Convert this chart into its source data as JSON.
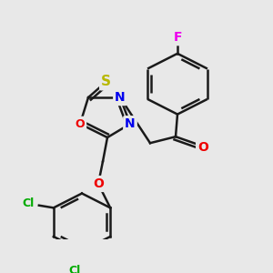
{
  "background_color": "#e8e8e8",
  "bond_color": "#1a1a1a",
  "atom_colors": {
    "S": "#b8b800",
    "N": "#0000ee",
    "O": "#ee0000",
    "F": "#ee00ee",
    "Cl": "#00aa00",
    "C": "#1a1a1a"
  },
  "fig_width": 3.0,
  "fig_height": 3.0,
  "dpi": 100
}
